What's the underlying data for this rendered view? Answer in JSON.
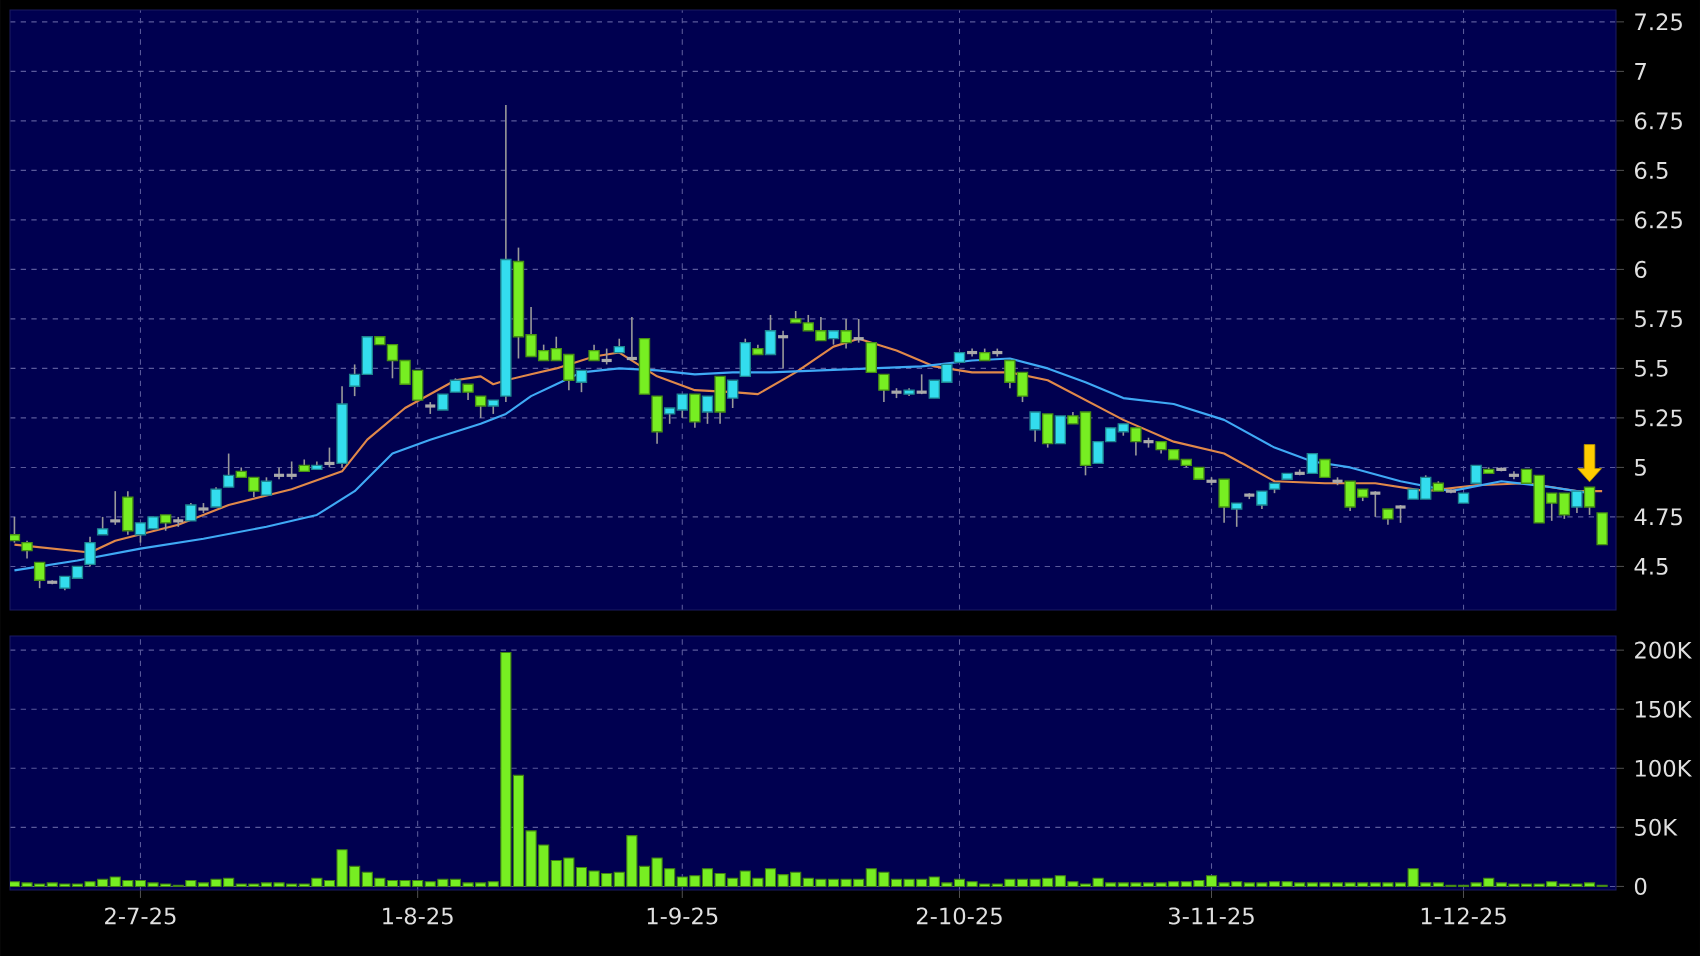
{
  "chart_data": [
    {
      "type": "candlestick",
      "categories": [
        null,
        null,
        null,
        null,
        null,
        null,
        null,
        null,
        null,
        null,
        null,
        null,
        null,
        null,
        null,
        null,
        null,
        null,
        null,
        null,
        null,
        null,
        null,
        null,
        null,
        null,
        null,
        null,
        null,
        null,
        null,
        null,
        null,
        null,
        null,
        null,
        null,
        null,
        null,
        null,
        null,
        null,
        null,
        null,
        null,
        null,
        null,
        null,
        null,
        null,
        null,
        null,
        null,
        null,
        null,
        null,
        null,
        null,
        null,
        null,
        null,
        null,
        null,
        null,
        null,
        null,
        null,
        null,
        null,
        null,
        null,
        null,
        null,
        null,
        null,
        null,
        null,
        null,
        null,
        null,
        null,
        null,
        null,
        null,
        null,
        null,
        null,
        null,
        null,
        null,
        null,
        null,
        null,
        null,
        null,
        null,
        null,
        null,
        null,
        null,
        null,
        null,
        null,
        null,
        null,
        null,
        null,
        null,
        null,
        null,
        null,
        null,
        null,
        null,
        null,
        null,
        null,
        null,
        null,
        null,
        null,
        null,
        null,
        null,
        null,
        null,
        null
      ],
      "ohlc": [
        [
          4.66,
          4.75,
          4.62,
          4.63
        ],
        [
          4.62,
          4.63,
          4.54,
          4.58
        ],
        [
          4.52,
          4.52,
          4.39,
          4.43
        ],
        [
          4.42,
          4.43,
          4.41,
          4.42
        ],
        [
          4.39,
          4.45,
          4.38,
          4.45
        ],
        [
          4.44,
          4.5,
          4.44,
          4.5
        ],
        [
          4.51,
          4.65,
          4.5,
          4.62
        ],
        [
          4.66,
          4.75,
          4.66,
          4.69
        ],
        [
          4.73,
          4.88,
          4.71,
          4.73
        ],
        [
          4.85,
          4.88,
          4.66,
          4.68
        ],
        [
          4.66,
          4.72,
          4.62,
          4.72
        ],
        [
          4.69,
          4.75,
          4.69,
          4.75
        ],
        [
          4.76,
          4.76,
          4.68,
          4.72
        ],
        [
          4.73,
          4.75,
          4.7,
          4.73
        ],
        [
          4.73,
          4.82,
          4.73,
          4.81
        ],
        [
          4.79,
          4.82,
          4.77,
          4.79
        ],
        [
          4.8,
          4.9,
          4.8,
          4.89
        ],
        [
          4.9,
          5.07,
          4.9,
          4.96
        ],
        [
          4.98,
          5.0,
          4.95,
          4.95
        ],
        [
          4.95,
          4.95,
          4.85,
          4.88
        ],
        [
          4.86,
          4.95,
          4.86,
          4.93
        ],
        [
          4.96,
          5.0,
          4.94,
          4.96
        ],
        [
          4.96,
          5.03,
          4.94,
          4.96
        ],
        [
          5.01,
          5.04,
          4.98,
          4.98
        ],
        [
          4.99,
          5.03,
          4.99,
          5.01
        ],
        [
          5.02,
          5.1,
          5.0,
          5.02
        ],
        [
          5.02,
          5.41,
          5.0,
          5.32
        ],
        [
          5.41,
          5.52,
          5.36,
          5.47
        ],
        [
          5.47,
          5.66,
          5.47,
          5.66
        ],
        [
          5.66,
          5.66,
          5.62,
          5.62
        ],
        [
          5.62,
          5.62,
          5.45,
          5.54
        ],
        [
          5.54,
          5.54,
          5.42,
          5.42
        ],
        [
          5.49,
          5.49,
          5.34,
          5.34
        ],
        [
          5.31,
          5.33,
          5.27,
          5.31
        ],
        [
          5.29,
          5.37,
          5.29,
          5.37
        ],
        [
          5.38,
          5.45,
          5.38,
          5.44
        ],
        [
          5.42,
          5.42,
          5.34,
          5.38
        ],
        [
          5.36,
          5.36,
          5.25,
          5.31
        ],
        [
          5.31,
          5.34,
          5.27,
          5.34
        ],
        [
          5.36,
          6.83,
          5.33,
          6.05
        ],
        [
          6.04,
          6.11,
          5.55,
          5.66
        ],
        [
          5.67,
          5.81,
          5.56,
          5.56
        ],
        [
          5.59,
          5.62,
          5.54,
          5.54
        ],
        [
          5.6,
          5.66,
          5.54,
          5.54
        ],
        [
          5.57,
          5.57,
          5.39,
          5.44
        ],
        [
          5.43,
          5.49,
          5.38,
          5.49
        ],
        [
          5.59,
          5.62,
          5.54,
          5.54
        ],
        [
          5.54,
          5.6,
          5.52,
          5.54
        ],
        [
          5.58,
          5.65,
          5.58,
          5.61
        ],
        [
          5.55,
          5.76,
          5.55,
          5.55
        ],
        [
          5.65,
          5.65,
          5.37,
          5.37
        ],
        [
          5.36,
          5.36,
          5.12,
          5.18
        ],
        [
          5.27,
          5.3,
          5.22,
          5.3
        ],
        [
          5.29,
          5.37,
          5.25,
          5.37
        ],
        [
          5.37,
          5.37,
          5.2,
          5.23
        ],
        [
          5.28,
          5.36,
          5.22,
          5.36
        ],
        [
          5.46,
          5.46,
          5.22,
          5.28
        ],
        [
          5.35,
          5.44,
          5.3,
          5.44
        ],
        [
          5.46,
          5.65,
          5.46,
          5.63
        ],
        [
          5.6,
          5.62,
          5.57,
          5.57
        ],
        [
          5.57,
          5.77,
          5.57,
          5.69
        ],
        [
          5.66,
          5.69,
          5.5,
          5.66
        ],
        [
          5.75,
          5.79,
          5.73,
          5.73
        ],
        [
          5.73,
          5.77,
          5.69,
          5.69
        ],
        [
          5.69,
          5.76,
          5.64,
          5.64
        ],
        [
          5.65,
          5.69,
          5.62,
          5.69
        ],
        [
          5.69,
          5.75,
          5.6,
          5.63
        ],
        [
          5.65,
          5.75,
          5.63,
          5.65
        ],
        [
          5.63,
          5.63,
          5.48,
          5.48
        ],
        [
          5.47,
          5.47,
          5.33,
          5.39
        ],
        [
          5.38,
          5.4,
          5.35,
          5.38
        ],
        [
          5.37,
          5.4,
          5.36,
          5.39
        ],
        [
          5.38,
          5.47,
          5.37,
          5.38
        ],
        [
          5.35,
          5.44,
          5.35,
          5.44
        ],
        [
          5.43,
          5.52,
          5.43,
          5.52
        ],
        [
          5.53,
          5.58,
          5.53,
          5.58
        ],
        [
          5.58,
          5.6,
          5.56,
          5.58
        ],
        [
          5.58,
          5.6,
          5.54,
          5.54
        ],
        [
          5.58,
          5.6,
          5.56,
          5.58
        ],
        [
          5.54,
          5.54,
          5.4,
          5.43
        ],
        [
          5.48,
          5.48,
          5.33,
          5.36
        ],
        [
          5.19,
          5.28,
          5.13,
          5.28
        ],
        [
          5.27,
          5.27,
          5.1,
          5.12
        ],
        [
          5.12,
          5.26,
          5.12,
          5.26
        ],
        [
          5.26,
          5.28,
          5.22,
          5.22
        ],
        [
          5.28,
          5.28,
          4.96,
          5.01
        ],
        [
          5.02,
          5.13,
          5.02,
          5.13
        ],
        [
          5.13,
          5.2,
          5.13,
          5.2
        ],
        [
          5.18,
          5.22,
          5.16,
          5.22
        ],
        [
          5.2,
          5.2,
          5.06,
          5.13
        ],
        [
          5.13,
          5.15,
          5.1,
          5.13
        ],
        [
          5.13,
          5.13,
          5.07,
          5.09
        ],
        [
          5.09,
          5.09,
          5.04,
          5.04
        ],
        [
          5.04,
          5.04,
          5.0,
          5.01
        ],
        [
          5.0,
          5.0,
          4.94,
          4.94
        ],
        [
          4.93,
          4.95,
          4.91,
          4.93
        ],
        [
          4.94,
          4.94,
          4.72,
          4.8
        ],
        [
          4.79,
          4.82,
          4.7,
          4.82
        ],
        [
          4.86,
          4.87,
          4.84,
          4.86
        ],
        [
          4.81,
          4.88,
          4.79,
          4.88
        ],
        [
          4.89,
          4.92,
          4.87,
          4.92
        ],
        [
          4.94,
          4.97,
          4.94,
          4.97
        ],
        [
          4.97,
          4.99,
          4.96,
          4.97
        ],
        [
          4.97,
          5.07,
          4.97,
          5.07
        ],
        [
          5.04,
          5.04,
          4.95,
          4.95
        ],
        [
          4.93,
          4.95,
          4.91,
          4.93
        ],
        [
          4.93,
          4.93,
          4.78,
          4.8
        ],
        [
          4.89,
          4.89,
          4.83,
          4.85
        ],
        [
          4.87,
          4.88,
          4.75,
          4.87
        ],
        [
          4.79,
          4.79,
          4.71,
          4.74
        ],
        [
          4.8,
          4.81,
          4.72,
          4.8
        ],
        [
          4.84,
          4.89,
          4.84,
          4.89
        ],
        [
          4.84,
          4.96,
          4.84,
          4.95
        ],
        [
          4.92,
          4.93,
          4.88,
          4.88
        ],
        [
          4.88,
          4.89,
          4.87,
          4.88
        ],
        [
          4.82,
          4.87,
          4.82,
          4.87
        ],
        [
          4.92,
          5.01,
          4.92,
          5.01
        ],
        [
          4.99,
          5.0,
          4.97,
          4.97
        ],
        [
          4.99,
          5.0,
          4.98,
          4.99
        ],
        [
          4.96,
          4.98,
          4.94,
          4.96
        ],
        [
          4.99,
          4.99,
          4.92,
          4.92
        ],
        [
          4.96,
          4.96,
          4.72,
          4.72
        ],
        [
          4.87,
          4.87,
          4.73,
          4.82
        ],
        [
          4.87,
          4.87,
          4.74,
          4.76
        ],
        [
          4.8,
          4.88,
          4.77,
          4.88
        ],
        [
          4.9,
          4.9,
          4.76,
          4.8
        ],
        [
          4.77,
          4.77,
          4.61,
          4.61
        ]
      ],
      "colors": [
        "#77ee22",
        "#77ee22",
        "#77ee22",
        "#aaaaaa",
        "#33ddee",
        "#33ddee",
        "#33ddee",
        "#33ddee",
        "#aaaaaa",
        "#77ee22",
        "#33ddee",
        "#33ddee",
        "#77ee22",
        "#aaaaaa",
        "#33ddee",
        "#aaaaaa",
        "#33ddee",
        "#33ddee",
        "#77ee22",
        "#77ee22",
        "#33ddee",
        "#aaaaaa",
        "#aaaaaa",
        "#77ee22",
        "#33ddee",
        "#aaaaaa",
        "#33ddee",
        "#33ddee",
        "#33ddee",
        "#77ee22",
        "#77ee22",
        "#77ee22",
        "#77ee22",
        "#aaaaaa",
        "#33ddee",
        "#33ddee",
        "#77ee22",
        "#77ee22",
        "#33ddee",
        "#33ddee",
        "#77ee22",
        "#77ee22",
        "#77ee22",
        "#77ee22",
        "#77ee22",
        "#33ddee",
        "#77ee22",
        "#aaaaaa",
        "#33ddee",
        "#aaaaaa",
        "#77ee22",
        "#77ee22",
        "#33ddee",
        "#33ddee",
        "#77ee22",
        "#33ddee",
        "#77ee22",
        "#33ddee",
        "#33ddee",
        "#77ee22",
        "#33ddee",
        "#aaaaaa",
        "#77ee22",
        "#77ee22",
        "#77ee22",
        "#33ddee",
        "#77ee22",
        "#aaaaaa",
        "#77ee22",
        "#77ee22",
        "#aaaaaa",
        "#33ddee",
        "#aaaaaa",
        "#33ddee",
        "#33ddee",
        "#33ddee",
        "#aaaaaa",
        "#77ee22",
        "#aaaaaa",
        "#77ee22",
        "#77ee22",
        "#33ddee",
        "#77ee22",
        "#33ddee",
        "#77ee22",
        "#77ee22",
        "#33ddee",
        "#33ddee",
        "#33ddee",
        "#77ee22",
        "#aaaaaa",
        "#77ee22",
        "#77ee22",
        "#77ee22",
        "#77ee22",
        "#aaaaaa",
        "#77ee22",
        "#33ddee",
        "#aaaaaa",
        "#33ddee",
        "#33ddee",
        "#33ddee",
        "#aaaaaa",
        "#33ddee",
        "#77ee22",
        "#aaaaaa",
        "#77ee22",
        "#77ee22",
        "#aaaaaa",
        "#77ee22",
        "#aaaaaa",
        "#33ddee",
        "#33ddee",
        "#77ee22",
        "#aaaaaa",
        "#33ddee",
        "#33ddee",
        "#77ee22",
        "#aaaaaa",
        "#aaaaaa",
        "#77ee22",
        "#77ee22",
        "#77ee22",
        "#77ee22",
        "#33ddee",
        "#77ee22",
        "#77ee22"
      ],
      "series": [
        {
          "type": "line",
          "color": "#e0884a",
          "values": [
            4.61,
            null,
            null,
            null,
            null,
            null,
            4.57,
            null,
            4.63,
            null,
            null,
            null,
            null,
            4.71,
            null,
            null,
            null,
            4.81,
            null,
            null,
            null,
            null,
            4.89,
            null,
            null,
            null,
            4.98,
            null,
            5.14,
            null,
            null,
            5.3,
            null,
            null,
            null,
            5.44,
            null,
            5.46,
            5.42,
            5.44,
            null,
            5.47,
            null,
            5.5,
            null,
            null,
            5.56,
            null,
            5.58,
            null,
            null,
            5.46,
            null,
            null,
            5.39,
            null,
            null,
            5.38,
            null,
            5.37,
            null,
            null,
            5.48,
            null,
            null,
            5.61,
            null,
            5.65,
            null,
            null,
            5.59,
            null,
            null,
            5.51,
            null,
            null,
            5.48,
            null,
            null,
            5.48,
            null,
            null,
            5.44,
            null,
            null,
            5.34,
            null,
            null,
            5.24,
            null,
            null,
            null,
            5.13,
            null,
            null,
            null,
            5.07,
            null,
            null,
            null,
            4.93,
            null,
            null,
            null,
            4.92,
            null,
            null,
            null,
            4.92,
            null,
            null,
            null,
            4.88,
            null,
            null,
            null,
            4.91,
            null,
            null,
            null,
            4.92,
            null,
            null,
            null,
            4.88,
            null,
            4.88
          ]
        },
        {
          "type": "line",
          "color": "#3fa9f5",
          "values": [
            4.48,
            null,
            null,
            null,
            null,
            4.53,
            null,
            null,
            null,
            null,
            4.59,
            null,
            null,
            null,
            null,
            4.64,
            null,
            null,
            null,
            null,
            4.7,
            null,
            null,
            null,
            4.76,
            null,
            null,
            4.88,
            null,
            null,
            5.07,
            null,
            null,
            5.14,
            null,
            null,
            null,
            5.22,
            null,
            5.27,
            null,
            5.36,
            null,
            5.42,
            null,
            5.48,
            null,
            null,
            5.5,
            null,
            null,
            5.49,
            null,
            null,
            5.47,
            null,
            null,
            5.48,
            null,
            null,
            5.48,
            null,
            null,
            null,
            5.49,
            null,
            null,
            null,
            5.5,
            null,
            null,
            null,
            5.51,
            null,
            null,
            null,
            5.54,
            null,
            null,
            5.55,
            null,
            null,
            5.5,
            null,
            null,
            5.43,
            null,
            null,
            5.35,
            null,
            null,
            null,
            5.32,
            null,
            null,
            null,
            5.24,
            null,
            null,
            null,
            5.1,
            null,
            null,
            5.03,
            null,
            null,
            5.0,
            null,
            null,
            null,
            4.93,
            null,
            null,
            null,
            4.88,
            null,
            null,
            null,
            4.93,
            null,
            null,
            null,
            4.9,
            null,
            null,
            4.87,
            null
          ]
        }
      ],
      "ylim": [
        4.28,
        7.31
      ],
      "yticks": [
        4.5,
        4.75,
        5,
        5.25,
        5.5,
        5.75,
        6,
        6.25,
        6.5,
        6.75,
        7,
        7.25
      ],
      "grid": true,
      "tick_labels": "y"
    },
    {
      "type": "bar",
      "categories": [
        null,
        null,
        null,
        null,
        null,
        null,
        null,
        null,
        null,
        null,
        "2-7-25",
        null,
        null,
        null,
        null,
        null,
        null,
        null,
        null,
        null,
        null,
        null,
        null,
        null,
        null,
        null,
        null,
        null,
        null,
        null,
        null,
        null,
        "1-8-25",
        null,
        null,
        null,
        null,
        null,
        null,
        null,
        null,
        null,
        null,
        null,
        null,
        null,
        null,
        null,
        null,
        null,
        null,
        null,
        null,
        "1-9-25",
        null,
        null,
        null,
        null,
        null,
        null,
        null,
        null,
        null,
        null,
        null,
        null,
        null,
        null,
        null,
        null,
        null,
        null,
        null,
        null,
        null,
        "2-10-25",
        null,
        null,
        null,
        null,
        null,
        null,
        null,
        null,
        null,
        null,
        null,
        null,
        null,
        null,
        null,
        null,
        null,
        null,
        null,
        "3-11-25",
        null,
        null,
        null,
        null,
        null,
        null,
        null,
        null,
        null,
        null,
        null,
        null,
        null,
        null,
        null,
        null,
        null,
        null,
        null,
        "1-12-25",
        null,
        null,
        null,
        null,
        null,
        null,
        null,
        null,
        null,
        null,
        null
      ],
      "values": [
        4000,
        3000,
        2000,
        3000,
        2000,
        2000,
        4000,
        6000,
        8000,
        5000,
        5000,
        3000,
        2000,
        1000,
        5000,
        3000,
        6000,
        7000,
        2000,
        2000,
        3000,
        3000,
        2000,
        2000,
        7000,
        5000,
        31000,
        17000,
        12000,
        7000,
        5000,
        5000,
        5000,
        4000,
        6000,
        6000,
        3000,
        3000,
        4000,
        198000,
        94000,
        47000,
        35000,
        22000,
        24000,
        16000,
        13000,
        11000,
        12000,
        43000,
        17000,
        24000,
        15000,
        8000,
        9000,
        15000,
        11000,
        7000,
        13000,
        7000,
        15000,
        10000,
        12000,
        7000,
        6000,
        6000,
        6000,
        6000,
        15000,
        12000,
        6000,
        6000,
        6000,
        8000,
        3000,
        6000,
        4000,
        2000,
        2000,
        6000,
        6000,
        6000,
        7000,
        9000,
        4000,
        2000,
        7000,
        3000,
        3000,
        3000,
        3000,
        3000,
        4000,
        4000,
        5000,
        9000,
        3000,
        4000,
        3000,
        3000,
        4000,
        4000,
        3000,
        3000,
        3000,
        3000,
        3000,
        3000,
        3000,
        3000,
        3000,
        15000,
        3000,
        3000,
        1000,
        1000,
        3000,
        7000,
        3000,
        2000,
        2000,
        2000,
        4000,
        2000,
        2000,
        3000,
        1000
      ],
      "color": "#77ee22",
      "ylim": [
        -3000,
        212000
      ],
      "yticks": [
        0,
        {
          "value": 50000,
          "label": "50K"
        },
        {
          "value": 100000,
          "label": "100K"
        },
        {
          "value": 150000,
          "label": "150K"
        },
        {
          "value": 200000,
          "label": "200K"
        }
      ],
      "grid": true
    }
  ]
}
